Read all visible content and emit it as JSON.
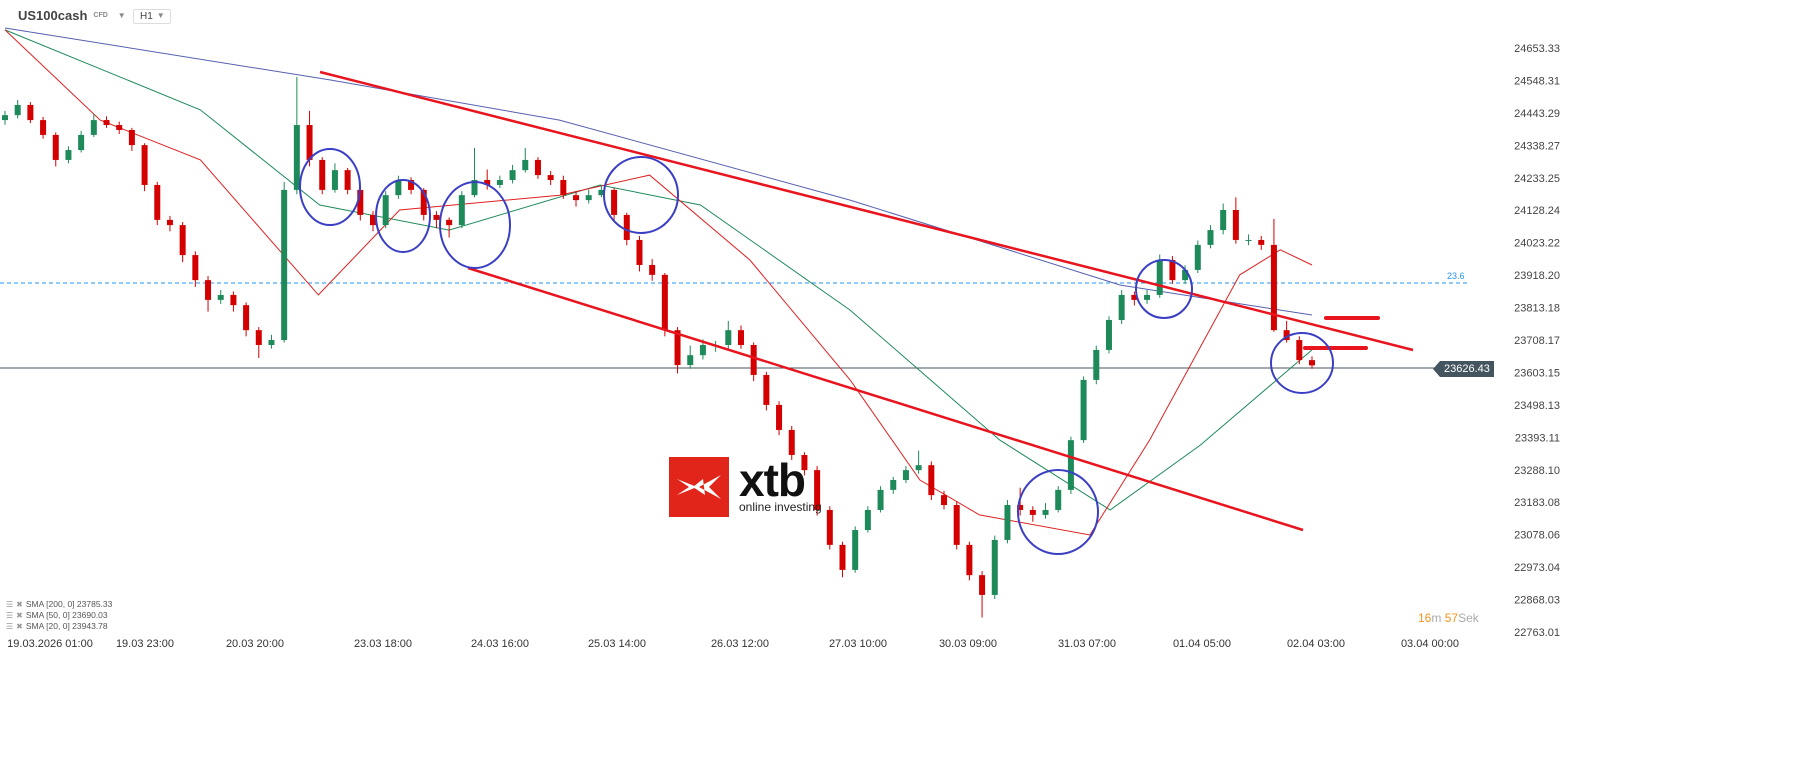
{
  "header": {
    "symbol": "US100cash",
    "symbol_type": "CFD",
    "timeframe": "H1"
  },
  "legend": [
    {
      "label": "SMA [200, 0] 23785.33",
      "color": "#5560b0"
    },
    {
      "label": "SMA [50, 0] 23690.03",
      "color": "#1e8a5a"
    },
    {
      "label": "SMA [20, 0] 23943.78",
      "color": "#e02020"
    }
  ],
  "timer": {
    "minutes": "16",
    "m": "m",
    "seconds": "57",
    "s": "Sek"
  },
  "current_price": "23626.43",
  "fib_label": "23.6",
  "logo": {
    "name": "xtb",
    "tagline": "online investing"
  },
  "chart_data": {
    "type": "candlestick",
    "ylim": [
      22763.01,
      24653.33
    ],
    "yticks": [
      "24653.33",
      "24548.31",
      "24443.29",
      "24338.27",
      "24233.25",
      "24128.24",
      "24023.22",
      "23918.20",
      "23813.18",
      "23708.17",
      "23603.15",
      "23498.13",
      "23393.11",
      "23288.10",
      "23183.08",
      "23078.06",
      "22973.04",
      "22868.03",
      "22763.01"
    ],
    "xticks": [
      "19.03.2026 01:00",
      "19.03 23:00",
      "20.03 20:00",
      "23.03 18:00",
      "24.03 16:00",
      "25.03 14:00",
      "26.03 12:00",
      "27.03 10:00",
      "30.03 09:00",
      "31.03 07:00",
      "01.04 05:00",
      "02.04 03:00",
      "03.04 00:00"
    ],
    "colors": {
      "up": "#1e8a5a",
      "down": "#d40000",
      "trendline": "#e8141e",
      "circle": "#3a3fc4",
      "fib": "#2196f3",
      "price_line": "#455560"
    },
    "fib_level": 23892,
    "current_price": 23626.43,
    "candles": [
      [
        24420,
        24450,
        24405,
        24436
      ],
      [
        24436,
        24485,
        24425,
        24469
      ],
      [
        24469,
        24478,
        24410,
        24420
      ],
      [
        24420,
        24430,
        24360,
        24372
      ],
      [
        24372,
        24380,
        24270,
        24291
      ],
      [
        24291,
        24335,
        24280,
        24323
      ],
      [
        24323,
        24385,
        24315,
        24372
      ],
      [
        24372,
        24440,
        24365,
        24420
      ],
      [
        24420,
        24432,
        24395,
        24404
      ],
      [
        24404,
        24415,
        24375,
        24388
      ],
      [
        24388,
        24395,
        24320,
        24339
      ],
      [
        24339,
        24345,
        24190,
        24210
      ],
      [
        24210,
        24220,
        24080,
        24097
      ],
      [
        24097,
        24110,
        24060,
        24080
      ],
      [
        24080,
        24090,
        23960,
        23983
      ],
      [
        23983,
        23995,
        23880,
        23902
      ],
      [
        23902,
        23915,
        23800,
        23838
      ],
      [
        23838,
        23870,
        23825,
        23854
      ],
      [
        23854,
        23865,
        23800,
        23821
      ],
      [
        23821,
        23830,
        23720,
        23740
      ],
      [
        23740,
        23750,
        23650,
        23692
      ],
      [
        23692,
        23725,
        23680,
        23708
      ],
      [
        23708,
        24220,
        23700,
        24194
      ],
      [
        24194,
        24560,
        24180,
        24404
      ],
      [
        24404,
        24450,
        24270,
        24291
      ],
      [
        24291,
        24300,
        24180,
        24194
      ],
      [
        24194,
        24280,
        24185,
        24258
      ],
      [
        24258,
        24265,
        24180,
        24194
      ],
      [
        24194,
        24205,
        24095,
        24113
      ],
      [
        24113,
        24125,
        24060,
        24080
      ],
      [
        24080,
        24190,
        24070,
        24177
      ],
      [
        24177,
        24240,
        24165,
        24226
      ],
      [
        24226,
        24235,
        24180,
        24194
      ],
      [
        24194,
        24200,
        24095,
        24113
      ],
      [
        24113,
        24125,
        24070,
        24097
      ],
      [
        24097,
        24105,
        24040,
        24080
      ],
      [
        24080,
        24190,
        24070,
        24177
      ],
      [
        24177,
        24330,
        24170,
        24226
      ],
      [
        24226,
        24260,
        24195,
        24210
      ],
      [
        24210,
        24240,
        24200,
        24226
      ],
      [
        24226,
        24275,
        24215,
        24258
      ],
      [
        24258,
        24330,
        24250,
        24291
      ],
      [
        24291,
        24300,
        24230,
        24242
      ],
      [
        24242,
        24255,
        24210,
        24226
      ],
      [
        24226,
        24240,
        24165,
        24177
      ],
      [
        24177,
        24190,
        24140,
        24161
      ],
      [
        24161,
        24195,
        24150,
        24177
      ],
      [
        24177,
        24210,
        24170,
        24194
      ],
      [
        24194,
        24200,
        24095,
        24113
      ],
      [
        24113,
        24120,
        24015,
        24032
      ],
      [
        24032,
        24045,
        23930,
        23951
      ],
      [
        23951,
        23970,
        23900,
        23919
      ],
      [
        23919,
        23925,
        23720,
        23740
      ],
      [
        23740,
        23750,
        23600,
        23627
      ],
      [
        23627,
        23690,
        23615,
        23659
      ],
      [
        23659,
        23710,
        23645,
        23692
      ],
      [
        23692,
        23705,
        23670,
        23692
      ],
      [
        23692,
        23770,
        23680,
        23740
      ],
      [
        23740,
        23755,
        23680,
        23692
      ],
      [
        23692,
        23700,
        23575,
        23595
      ],
      [
        23595,
        23605,
        23480,
        23498
      ],
      [
        23498,
        23510,
        23400,
        23417
      ],
      [
        23417,
        23430,
        23320,
        23336
      ],
      [
        23336,
        23345,
        23270,
        23287
      ],
      [
        23287,
        23300,
        23140,
        23158
      ],
      [
        23158,
        23170,
        23030,
        23045
      ],
      [
        23045,
        23055,
        22940,
        22964
      ],
      [
        22964,
        23105,
        22955,
        23093
      ],
      [
        23093,
        23170,
        23085,
        23158
      ],
      [
        23158,
        23235,
        23150,
        23223
      ],
      [
        23223,
        23265,
        23210,
        23255
      ],
      [
        23255,
        23300,
        23245,
        23287
      ],
      [
        23287,
        23350,
        23275,
        23303
      ],
      [
        23303,
        23315,
        23190,
        23206
      ],
      [
        23206,
        23220,
        23160,
        23174
      ],
      [
        23174,
        23185,
        23030,
        23045
      ],
      [
        23045,
        23055,
        22930,
        22947
      ],
      [
        22947,
        22960,
        22810,
        22883
      ],
      [
        22883,
        23075,
        22870,
        23061
      ],
      [
        23061,
        23190,
        23050,
        23174
      ],
      [
        23174,
        23230,
        23140,
        23158
      ],
      [
        23158,
        23170,
        23120,
        23142
      ],
      [
        23142,
        23180,
        23130,
        23158
      ],
      [
        23158,
        23235,
        23150,
        23223
      ],
      [
        23223,
        23395,
        23210,
        23384
      ],
      [
        23384,
        23590,
        23375,
        23579
      ],
      [
        23579,
        23690,
        23565,
        23676
      ],
      [
        23676,
        23785,
        23665,
        23773
      ],
      [
        23773,
        23870,
        23760,
        23854
      ],
      [
        23854,
        23865,
        23820,
        23838
      ],
      [
        23838,
        23870,
        23825,
        23854
      ],
      [
        23854,
        23985,
        23845,
        23967
      ],
      [
        23967,
        23980,
        23890,
        23902
      ],
      [
        23902,
        23950,
        23890,
        23935
      ],
      [
        23935,
        24030,
        23925,
        24016
      ],
      [
        24016,
        24080,
        24005,
        24064
      ],
      [
        24064,
        24150,
        24050,
        24129
      ],
      [
        24129,
        24170,
        24020,
        24032
      ],
      [
        24032,
        24050,
        24015,
        24032
      ],
      [
        24032,
        24045,
        24000,
        24016
      ],
      [
        24016,
        24100,
        23735,
        23740
      ],
      [
        23740,
        23770,
        23700,
        23708
      ],
      [
        23708,
        23720,
        23630,
        23643
      ],
      [
        23643,
        23655,
        23615,
        23626
      ]
    ],
    "series": [
      {
        "name": "SMA [200, 0]",
        "color": "#5560b0",
        "points": [
          [
            0,
            24718
          ],
          [
            25.6,
            24550
          ],
          [
            43.7,
            24420
          ],
          [
            66.6,
            24161
          ],
          [
            87.9,
            23886
          ],
          [
            103,
            23789
          ]
        ]
      },
      {
        "name": "SMA [50, 0]",
        "color": "#1e8a5a",
        "points": [
          [
            0,
            24712
          ],
          [
            15.4,
            24453
          ],
          [
            24.8,
            24145
          ],
          [
            35,
            24064
          ],
          [
            46.9,
            24210
          ],
          [
            54.8,
            24145
          ],
          [
            66.6,
            23805
          ],
          [
            78.4,
            23384
          ],
          [
            87.1,
            23158
          ],
          [
            94.2,
            23368
          ],
          [
            103,
            23676
          ]
        ]
      },
      {
        "name": "SMA [20, 0]",
        "color": "#e02020",
        "points": [
          [
            0,
            24712
          ],
          [
            7.5,
            24420
          ],
          [
            15.4,
            24291
          ],
          [
            24.7,
            23854
          ],
          [
            31.1,
            24129
          ],
          [
            43.7,
            24177
          ],
          [
            50.8,
            24242
          ],
          [
            58.7,
            23967
          ],
          [
            66.6,
            23579
          ],
          [
            72.1,
            23255
          ],
          [
            76.8,
            23142
          ],
          [
            85.5,
            23077
          ],
          [
            90.2,
            23384
          ],
          [
            97.3,
            23919
          ],
          [
            100.5,
            24000
          ],
          [
            103,
            23951
          ]
        ]
      }
    ]
  }
}
